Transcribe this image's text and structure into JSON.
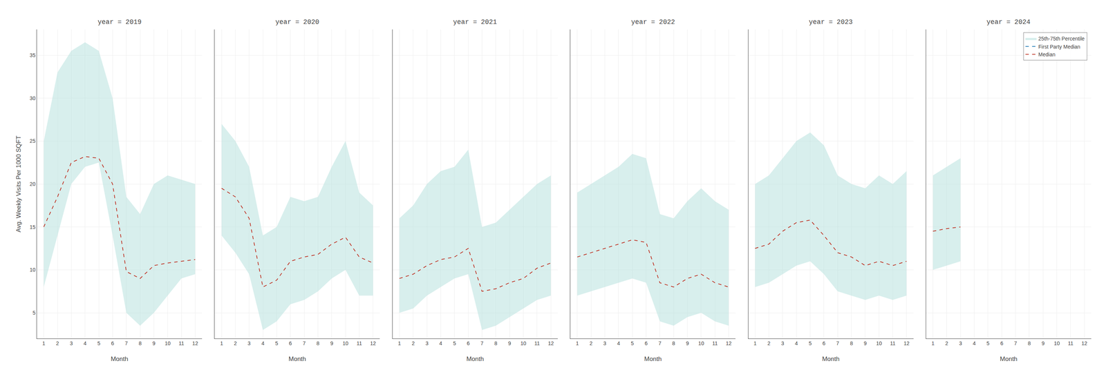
{
  "chart_data": [
    {
      "type": "line",
      "title": "year = 2019",
      "xlabel": "Month",
      "ylabel": "Avg. Weekly Visits Per 1000 SQFT",
      "x": [
        1,
        2,
        3,
        4,
        5,
        6,
        7,
        8,
        9,
        10,
        11,
        12
      ],
      "series": [
        {
          "name": "Median",
          "color": "#c0392b",
          "line_style": "dashed",
          "values": [
            15.0,
            18.5,
            22.5,
            23.2,
            23.0,
            20.0,
            9.8,
            9.0,
            10.5,
            10.8,
            11.0,
            11.2
          ]
        },
        {
          "name": "First Party Median",
          "color": "#2980b9",
          "line_style": "dashed",
          "values": [
            null,
            null,
            null,
            null,
            null,
            null,
            null,
            null,
            null,
            null,
            null,
            null
          ]
        },
        {
          "name": "25th-75th Percentile",
          "type": "band",
          "color": "#b2dfdb",
          "lower": [
            8.0,
            14.0,
            20.0,
            22.0,
            22.5,
            14.0,
            5.0,
            3.5,
            5.0,
            7.0,
            9.0,
            9.5
          ],
          "upper": [
            25.0,
            33.0,
            35.5,
            36.5,
            35.5,
            30.0,
            18.5,
            16.5,
            20.0,
            21.0,
            20.5,
            20.0
          ]
        }
      ],
      "xlim": [
        0.5,
        12.5
      ],
      "xticks": [
        1,
        2,
        3,
        4,
        5,
        6,
        7,
        8,
        9,
        10,
        11,
        12
      ],
      "ylim": [
        2,
        38
      ],
      "yticks": [
        5,
        10,
        15,
        20,
        25,
        30,
        35
      ],
      "grid": true
    },
    {
      "type": "line",
      "title": "year = 2020",
      "xlabel": "Month",
      "x": [
        1,
        2,
        3,
        4,
        5,
        6,
        7,
        8,
        9,
        10,
        11,
        12
      ],
      "series": [
        {
          "name": "Median",
          "color": "#c0392b",
          "line_style": "dashed",
          "values": [
            19.5,
            18.5,
            16.0,
            8.0,
            8.8,
            11.0,
            11.5,
            11.8,
            13.0,
            13.8,
            11.5,
            10.8
          ]
        },
        {
          "name": "First Party Median",
          "color": "#2980b9",
          "line_style": "dashed",
          "values": [
            null,
            null,
            null,
            null,
            null,
            null,
            null,
            null,
            null,
            null,
            null,
            null
          ]
        },
        {
          "name": "25th-75th Percentile",
          "type": "band",
          "color": "#b2dfdb",
          "lower": [
            14.0,
            12.0,
            9.5,
            3.0,
            4.0,
            6.0,
            6.5,
            7.5,
            9.0,
            10.0,
            7.0,
            7.0
          ],
          "upper": [
            27.0,
            25.0,
            22.0,
            14.0,
            15.0,
            18.5,
            18.0,
            18.5,
            22.0,
            25.0,
            19.0,
            17.5
          ]
        }
      ],
      "xlim": [
        0.5,
        12.5
      ],
      "xticks": [
        1,
        2,
        3,
        4,
        5,
        6,
        7,
        8,
        9,
        10,
        11,
        12
      ],
      "ylim": [
        2,
        38
      ],
      "yticks": [
        5,
        10,
        15,
        20,
        25,
        30,
        35
      ],
      "grid": true,
      "tick_labels": "x"
    },
    {
      "type": "line",
      "title": "year = 2021",
      "xlabel": "Month",
      "x": [
        1,
        2,
        3,
        4,
        5,
        6,
        7,
        8,
        9,
        10,
        11,
        12
      ],
      "series": [
        {
          "name": "Median",
          "color": "#c0392b",
          "line_style": "dashed",
          "values": [
            9.0,
            9.5,
            10.5,
            11.2,
            11.5,
            12.5,
            7.5,
            7.8,
            8.5,
            9.0,
            10.2,
            10.8
          ]
        },
        {
          "name": "First Party Median",
          "color": "#2980b9",
          "line_style": "dashed",
          "values": [
            null,
            null,
            null,
            null,
            null,
            null,
            null,
            null,
            null,
            null,
            null,
            null
          ]
        },
        {
          "name": "25th-75th Percentile",
          "type": "band",
          "color": "#b2dfdb",
          "lower": [
            5.0,
            5.5,
            7.0,
            8.0,
            9.0,
            9.5,
            3.0,
            3.5,
            4.5,
            5.5,
            6.5,
            7.0
          ],
          "upper": [
            16.0,
            17.5,
            20.0,
            21.5,
            22.0,
            24.0,
            15.0,
            15.5,
            17.0,
            18.5,
            20.0,
            21.0
          ]
        }
      ],
      "xlim": [
        0.5,
        12.5
      ],
      "xticks": [
        1,
        2,
        3,
        4,
        5,
        6,
        7,
        8,
        9,
        10,
        11,
        12
      ],
      "ylim": [
        2,
        38
      ],
      "yticks": [
        5,
        10,
        15,
        20,
        25,
        30,
        35
      ],
      "grid": true,
      "tick_labels": "x"
    },
    {
      "type": "line",
      "title": "year = 2022",
      "xlabel": "Month",
      "x": [
        1,
        2,
        3,
        4,
        5,
        6,
        7,
        8,
        9,
        10,
        11,
        12
      ],
      "series": [
        {
          "name": "Median",
          "color": "#c0392b",
          "line_style": "dashed",
          "values": [
            11.5,
            12.0,
            12.5,
            13.0,
            13.5,
            13.2,
            8.5,
            8.0,
            9.0,
            9.5,
            8.5,
            8.0
          ]
        },
        {
          "name": "First Party Median",
          "color": "#2980b9",
          "line_style": "dashed",
          "values": [
            null,
            null,
            null,
            null,
            null,
            null,
            null,
            null,
            null,
            null,
            null,
            null
          ]
        },
        {
          "name": "25th-75th Percentile",
          "type": "band",
          "color": "#b2dfdb",
          "lower": [
            7.0,
            7.5,
            8.0,
            8.5,
            9.0,
            8.5,
            4.0,
            3.5,
            4.5,
            5.0,
            4.0,
            3.5
          ],
          "upper": [
            19.0,
            20.0,
            21.0,
            22.0,
            23.5,
            23.0,
            16.5,
            16.0,
            18.0,
            19.5,
            18.0,
            17.0
          ]
        }
      ],
      "xlim": [
        0.5,
        12.5
      ],
      "xticks": [
        1,
        2,
        3,
        4,
        5,
        6,
        7,
        8,
        9,
        10,
        11,
        12
      ],
      "ylim": [
        2,
        38
      ],
      "yticks": [
        5,
        10,
        15,
        20,
        25,
        30,
        35
      ],
      "grid": true,
      "tick_labels": "x"
    },
    {
      "type": "line",
      "title": "year = 2023",
      "xlabel": "Month",
      "x": [
        1,
        2,
        3,
        4,
        5,
        6,
        7,
        8,
        9,
        10,
        11,
        12
      ],
      "series": [
        {
          "name": "Median",
          "color": "#c0392b",
          "line_style": "dashed",
          "values": [
            12.5,
            13.0,
            14.5,
            15.5,
            15.8,
            14.0,
            12.0,
            11.5,
            10.5,
            11.0,
            10.5,
            11.0
          ]
        },
        {
          "name": "First Party Median",
          "color": "#2980b9",
          "line_style": "dashed",
          "values": [
            null,
            null,
            null,
            null,
            null,
            null,
            null,
            null,
            null,
            null,
            null,
            null
          ]
        },
        {
          "name": "25th-75th Percentile",
          "type": "band",
          "color": "#b2dfdb",
          "lower": [
            8.0,
            8.5,
            9.5,
            10.5,
            11.0,
            9.5,
            7.5,
            7.0,
            6.5,
            7.0,
            6.5,
            7.0
          ],
          "upper": [
            20.0,
            21.0,
            23.0,
            25.0,
            26.0,
            24.5,
            21.0,
            20.0,
            19.5,
            21.0,
            20.0,
            21.5
          ]
        }
      ],
      "xlim": [
        0.5,
        12.5
      ],
      "xticks": [
        1,
        2,
        3,
        4,
        5,
        6,
        7,
        8,
        9,
        10,
        11,
        12
      ],
      "ylim": [
        2,
        38
      ],
      "yticks": [
        5,
        10,
        15,
        20,
        25,
        30,
        35
      ],
      "grid": true,
      "tick_labels": "x"
    },
    {
      "type": "line",
      "title": "year = 2024",
      "xlabel": "Month",
      "x": [
        1,
        2,
        3,
        4,
        5,
        6,
        7,
        8,
        9,
        10,
        11,
        12
      ],
      "series": [
        {
          "name": "Median",
          "color": "#c0392b",
          "line_style": "dashed",
          "values": [
            14.5,
            14.8,
            15.0,
            null,
            null,
            null,
            null,
            null,
            null,
            null,
            null,
            null
          ]
        },
        {
          "name": "First Party Median",
          "color": "#2980b9",
          "line_style": "dashed",
          "values": [
            null,
            null,
            null,
            null,
            null,
            null,
            null,
            null,
            null,
            null,
            null,
            null
          ]
        },
        {
          "name": "25th-75th Percentile",
          "type": "band",
          "color": "#b2dfdb",
          "lower": [
            10.0,
            10.5,
            11.0,
            null,
            null,
            null,
            null,
            null,
            null,
            null,
            null,
            null
          ],
          "upper": [
            21.0,
            22.0,
            23.0,
            null,
            null,
            null,
            null,
            null,
            null,
            null,
            null,
            null
          ]
        }
      ],
      "xlim": [
        0.5,
        12.5
      ],
      "xticks": [
        1,
        2,
        3,
        4,
        5,
        6,
        7,
        8,
        9,
        10,
        11,
        12
      ],
      "ylim": [
        2,
        38
      ],
      "yticks": [
        5,
        10,
        15,
        20,
        25,
        30,
        35
      ],
      "grid": true,
      "tick_labels": "x",
      "legend": "upper right"
    }
  ]
}
